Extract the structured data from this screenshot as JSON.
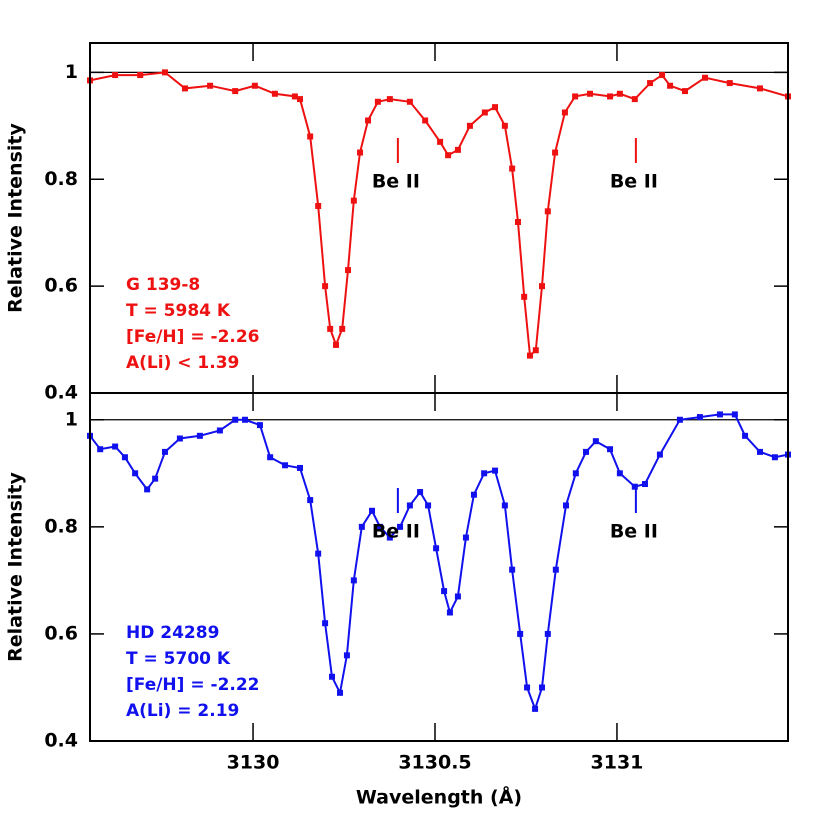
{
  "chart_data": [
    {
      "type": "line",
      "color": "#ee1111",
      "ylabel": "Relative Intensity",
      "xlim": [
        3129.552,
        3131.47
      ],
      "ylim": [
        0.4,
        1.055
      ],
      "xticks": [
        3130,
        3130.5,
        3131
      ],
      "xtick_labels": false,
      "yticks": [
        0.4,
        0.6,
        0.8,
        1
      ],
      "hline": 1,
      "x": [
        3129.552,
        3129.621,
        3129.69,
        3129.758,
        3129.813,
        3129.882,
        3129.951,
        3130.005,
        3130.06,
        3130.115,
        3130.129,
        3130.157,
        3130.179,
        3130.198,
        3130.212,
        3130.228,
        3130.245,
        3130.261,
        3130.277,
        3130.294,
        3130.316,
        3130.343,
        3130.376,
        3130.431,
        3130.473,
        3130.514,
        3130.536,
        3130.563,
        3130.596,
        3130.637,
        3130.665,
        3130.692,
        3130.712,
        3130.728,
        3130.745,
        3130.761,
        3130.777,
        3130.794,
        3130.81,
        3130.83,
        3130.857,
        3130.885,
        3130.926,
        3130.981,
        3131.008,
        3131.049,
        3131.091,
        3131.124,
        3131.146,
        3131.187,
        3131.242,
        3131.31,
        3131.393,
        3131.47
      ],
      "series": [
        {
          "name": "G 139-8",
          "color": "#ee1111",
          "values": [
            0.985,
            0.995,
            0.995,
            1.0,
            0.97,
            0.975,
            0.965,
            0.975,
            0.96,
            0.955,
            0.95,
            0.88,
            0.75,
            0.6,
            0.52,
            0.49,
            0.52,
            0.63,
            0.76,
            0.85,
            0.91,
            0.945,
            0.95,
            0.945,
            0.91,
            0.87,
            0.845,
            0.855,
            0.9,
            0.925,
            0.935,
            0.9,
            0.82,
            0.72,
            0.58,
            0.47,
            0.48,
            0.6,
            0.74,
            0.85,
            0.925,
            0.955,
            0.96,
            0.955,
            0.96,
            0.95,
            0.98,
            0.995,
            0.975,
            0.965,
            0.99,
            0.98,
            0.97,
            0.955
          ]
        }
      ],
      "labels": [
        "G 139-8",
        "T = 5984 K",
        "[Fe/H] = -2.26",
        "A(Li) < 1.39"
      ],
      "annotations": [
        {
          "text": "Be II",
          "x": 3130.398
        },
        {
          "text": "Be II",
          "x": 3131.052
        }
      ]
    },
    {
      "type": "line",
      "color": "#1111ee",
      "ylabel": "Relative Intensity",
      "xlabel": "Wavelength (Å)",
      "xlim": [
        3129.552,
        3131.47
      ],
      "ylim": [
        0.4,
        1.05
      ],
      "xticks": [
        3130,
        3130.5,
        3131
      ],
      "xtick_labels": true,
      "yticks": [
        0.4,
        0.6,
        0.8,
        1
      ],
      "hline": 1,
      "x": [
        3129.552,
        3129.58,
        3129.621,
        3129.648,
        3129.676,
        3129.709,
        3129.731,
        3129.758,
        3129.799,
        3129.854,
        3129.909,
        3129.951,
        3129.978,
        3130.019,
        3130.047,
        3130.088,
        3130.129,
        3130.157,
        3130.179,
        3130.198,
        3130.217,
        3130.239,
        3130.258,
        3130.277,
        3130.299,
        3130.327,
        3130.349,
        3130.376,
        3130.404,
        3130.431,
        3130.459,
        3130.481,
        3130.503,
        3130.525,
        3130.541,
        3130.563,
        3130.585,
        3130.607,
        3130.635,
        3130.665,
        3130.692,
        3130.712,
        3130.734,
        3130.753,
        3130.775,
        3130.794,
        3130.81,
        3130.832,
        3130.86,
        3130.887,
        3130.915,
        3130.942,
        3130.981,
        3131.008,
        3131.049,
        3131.077,
        3131.118,
        3131.173,
        3131.228,
        3131.283,
        3131.324,
        3131.352,
        3131.393,
        3131.434,
        3131.47
      ],
      "series": [
        {
          "name": "HD 24289",
          "color": "#1111ee",
          "values": [
            0.97,
            0.945,
            0.95,
            0.93,
            0.9,
            0.87,
            0.89,
            0.94,
            0.965,
            0.97,
            0.98,
            1.0,
            1.0,
            0.99,
            0.93,
            0.915,
            0.91,
            0.85,
            0.75,
            0.62,
            0.52,
            0.49,
            0.56,
            0.7,
            0.8,
            0.83,
            0.8,
            0.78,
            0.8,
            0.84,
            0.865,
            0.84,
            0.76,
            0.68,
            0.64,
            0.67,
            0.78,
            0.86,
            0.9,
            0.905,
            0.84,
            0.72,
            0.6,
            0.5,
            0.46,
            0.5,
            0.6,
            0.72,
            0.84,
            0.9,
            0.94,
            0.96,
            0.945,
            0.9,
            0.875,
            0.88,
            0.935,
            1.0,
            1.005,
            1.01,
            1.01,
            0.97,
            0.94,
            0.93,
            0.935
          ]
        }
      ],
      "labels": [
        "HD 24289",
        "T = 5700 K",
        "[Fe/H] = -2.22",
        "A(Li) = 2.19"
      ],
      "annotations": [
        {
          "text": "Be II",
          "x": 3130.398
        },
        {
          "text": "Be II",
          "x": 3131.052
        }
      ]
    }
  ]
}
